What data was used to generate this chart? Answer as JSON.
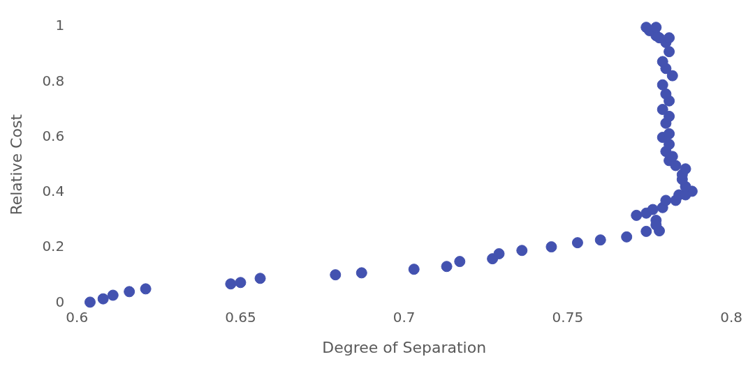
{
  "chart_data": {
    "type": "scatter",
    "xlabel": "Degree of Separation",
    "ylabel": "Relative Cost",
    "xlim": [
      0.6,
      0.8
    ],
    "xticks": [
      0.6,
      0.65,
      0.7,
      0.75,
      0.8
    ],
    "ylim": [
      0,
      1
    ],
    "yticks": [
      0,
      0.2,
      0.4,
      0.6,
      0.8,
      1
    ],
    "grid": false,
    "marker": "circle",
    "legend": false,
    "series": [
      {
        "color": "#4352b0",
        "x": [
          0.604,
          0.608,
          0.611,
          0.616,
          0.621,
          0.647,
          0.65,
          0.656,
          0.679,
          0.687,
          0.703,
          0.713,
          0.717,
          0.727,
          0.729,
          0.736,
          0.745,
          0.753,
          0.76,
          0.768,
          0.774,
          0.778,
          0.771,
          0.774,
          0.776,
          0.777,
          0.777,
          0.779,
          0.78,
          0.783,
          0.784,
          0.786,
          0.788,
          0.786,
          0.785,
          0.785,
          0.786,
          0.783,
          0.781,
          0.782,
          0.78,
          0.781,
          0.779,
          0.781,
          0.78,
          0.781,
          0.779,
          0.781,
          0.78,
          0.779,
          0.782,
          0.78,
          0.779,
          0.781,
          0.78,
          0.781,
          0.778,
          0.777,
          0.775,
          0.774,
          0.777
        ],
        "values": [
          0.003,
          0.015,
          0.028,
          0.041,
          0.051,
          0.069,
          0.074,
          0.089,
          0.102,
          0.109,
          0.122,
          0.132,
          0.15,
          0.16,
          0.178,
          0.19,
          0.203,
          0.218,
          0.228,
          0.239,
          0.259,
          0.261,
          0.317,
          0.325,
          0.338,
          0.299,
          0.282,
          0.345,
          0.371,
          0.371,
          0.391,
          0.391,
          0.404,
          0.421,
          0.447,
          0.464,
          0.485,
          0.497,
          0.515,
          0.53,
          0.548,
          0.574,
          0.599,
          0.612,
          0.65,
          0.675,
          0.7,
          0.731,
          0.756,
          0.789,
          0.822,
          0.848,
          0.873,
          0.909,
          0.942,
          0.959,
          0.959,
          0.967,
          0.985,
          0.997,
          0.997
        ]
      }
    ]
  }
}
